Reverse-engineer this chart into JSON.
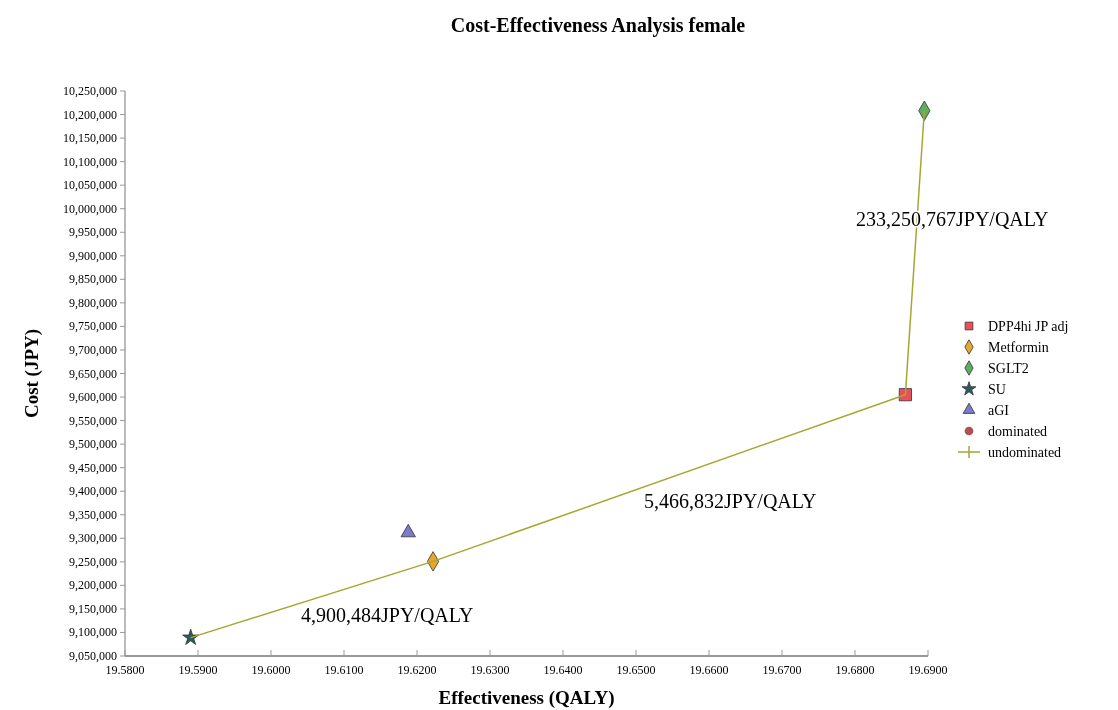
{
  "chart_data": {
    "type": "scatter",
    "title": "Cost-Effectiveness Analysis  female",
    "xlabel": "Effectiveness (QALY)",
    "ylabel": "Cost (JPY)",
    "xlim": [
      19.58,
      19.69
    ],
    "xticks": [
      {
        "value": 19.58,
        "label": "19.5800"
      },
      {
        "value": 19.59,
        "label": "19.5900"
      },
      {
        "value": 19.6,
        "label": "19.6000"
      },
      {
        "value": 19.61,
        "label": "19.6100"
      },
      {
        "value": 19.62,
        "label": "19.6200"
      },
      {
        "value": 19.63,
        "label": "19.6300"
      },
      {
        "value": 19.64,
        "label": "19.6400"
      },
      {
        "value": 19.65,
        "label": "19.6500"
      },
      {
        "value": 19.66,
        "label": "19.6600"
      },
      {
        "value": 19.67,
        "label": "19.6700"
      },
      {
        "value": 19.68,
        "label": "19.6800"
      },
      {
        "value": 19.69,
        "label": "19.6900"
      }
    ],
    "ylim": [
      9050000,
      10250000
    ],
    "yticks": [
      {
        "value": 9050000,
        "label": "9,050,000"
      },
      {
        "value": 9100000,
        "label": "9,100,000"
      },
      {
        "value": 9150000,
        "label": "9,150,000"
      },
      {
        "value": 9200000,
        "label": "9,200,000"
      },
      {
        "value": 9250000,
        "label": "9,250,000"
      },
      {
        "value": 9300000,
        "label": "9,300,000"
      },
      {
        "value": 9350000,
        "label": "9,350,000"
      },
      {
        "value": 9400000,
        "label": "9,400,000"
      },
      {
        "value": 9450000,
        "label": "9,450,000"
      },
      {
        "value": 9500000,
        "label": "9,500,000"
      },
      {
        "value": 9550000,
        "label": "9,550,000"
      },
      {
        "value": 9600000,
        "label": "9,600,000"
      },
      {
        "value": 9650000,
        "label": "9,650,000"
      },
      {
        "value": 9700000,
        "label": "9,700,000"
      },
      {
        "value": 9750000,
        "label": "9,750,000"
      },
      {
        "value": 9800000,
        "label": "9,800,000"
      },
      {
        "value": 9850000,
        "label": "9,850,000"
      },
      {
        "value": 9900000,
        "label": "9,900,000"
      },
      {
        "value": 9950000,
        "label": "9,950,000"
      },
      {
        "value": 10000000,
        "label": "10,000,000"
      },
      {
        "value": 10050000,
        "label": "10,050,000"
      },
      {
        "value": 10100000,
        "label": "10,100,000"
      },
      {
        "value": 10150000,
        "label": "10,150,000"
      },
      {
        "value": 10200000,
        "label": "10,200,000"
      },
      {
        "value": 10250000,
        "label": "10,250,000"
      }
    ],
    "grid": false,
    "legend": "right",
    "series": [
      {
        "name": "DPP4hi JP adj",
        "color": "#e8505b",
        "marker": "square",
        "x": [
          19.6869
        ],
        "values": [
          9605000
        ]
      },
      {
        "name": "Metformin",
        "color": "#e8a530",
        "marker": "diamond",
        "x": [
          19.6222
        ],
        "values": [
          9251000
        ]
      },
      {
        "name": "SGLT2",
        "color": "#5fae5f",
        "marker": "diamond",
        "x": [
          19.6895
        ],
        "values": [
          10208000
        ]
      },
      {
        "name": "SU",
        "color": "#2f5a5a",
        "marker": "star",
        "x": [
          19.589
        ],
        "values": [
          9089000
        ]
      },
      {
        "name": "aGI",
        "color": "#7b7bc8",
        "marker": "triangle",
        "x": [
          19.6188
        ],
        "values": [
          9312000
        ]
      },
      {
        "name": "dominated",
        "color": "#b05050",
        "marker": "circle"
      },
      {
        "name": "undominated",
        "type": "line",
        "color": "#a6a632",
        "marker": "none",
        "line_style": "solid",
        "x": [
          19.589,
          19.6222,
          19.6869,
          19.6895
        ],
        "values": [
          9089000,
          9251000,
          9605000,
          10208000
        ]
      }
    ],
    "annotations": [
      "233,250,767JPY/QALY",
      "5,466,832JPY/QALY",
      "4,900,484JPY/QALY"
    ]
  }
}
